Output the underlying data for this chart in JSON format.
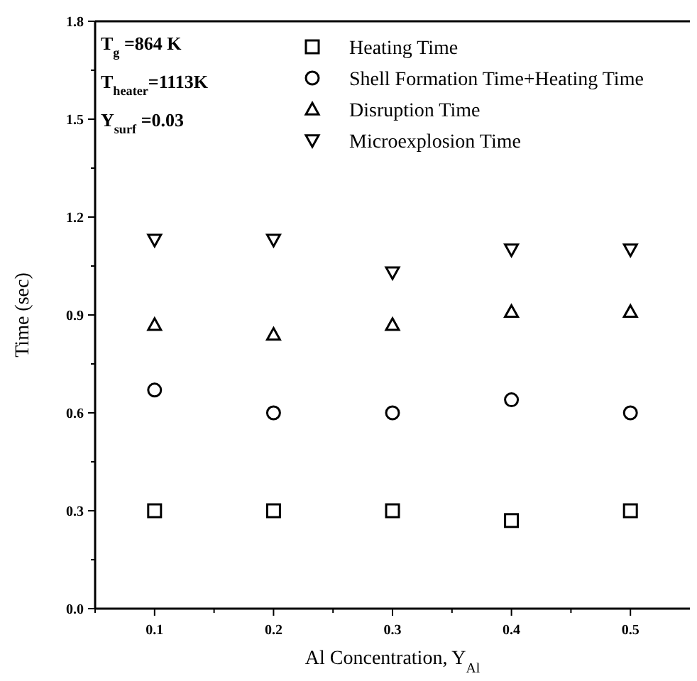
{
  "chart_data": {
    "type": "scatter",
    "xlabel": "Al   Concentration, Y$_{Al}$",
    "ylabel": "Time   (sec)",
    "x": [
      0.1,
      0.2,
      0.3,
      0.4,
      0.5
    ],
    "xlim": [
      0.05,
      0.55
    ],
    "xticks": [
      {
        "value": 0.05,
        "label": null
      },
      0.1,
      {
        "value": 0.15,
        "label": null
      },
      0.2,
      {
        "value": 0.25,
        "label": null
      },
      0.3,
      {
        "value": 0.35,
        "label": null
      },
      0.4,
      {
        "value": 0.45,
        "label": null
      },
      0.5
    ],
    "ylim": [
      0,
      1.8
    ],
    "yticks": [
      "0.0",
      {
        "value": 0.15,
        "label": null
      },
      0.3,
      {
        "value": 0.45,
        "label": null
      },
      0.6,
      {
        "value": 0.75,
        "label": null
      },
      0.9,
      {
        "value": 1.05,
        "label": null
      },
      1.2,
      {
        "value": 1.35,
        "label": null
      },
      1.5,
      {
        "value": 1.65,
        "label": null
      },
      1.8
    ],
    "series": [
      {
        "name": "Heating Time",
        "color": "#000000",
        "marker": "square",
        "values": [
          0.3,
          0.3,
          0.3,
          0.27,
          0.3
        ]
      },
      {
        "name": "Shell Formation Time+Heating Time",
        "color": "#000000",
        "marker": "circle",
        "values": [
          0.67,
          0.6,
          0.6,
          0.64,
          0.6
        ]
      },
      {
        "name": "Disruption Time",
        "color": "#000000",
        "marker": "triangle",
        "values": [
          0.87,
          0.84,
          0.87,
          0.91,
          0.91
        ]
      },
      {
        "name": "Microexplosion Time",
        "color": "#000000",
        "marker": "triangle-down",
        "values": [
          1.13,
          1.13,
          1.03,
          1.1,
          1.1
        ]
      }
    ],
    "legend": "top right",
    "annotations": [
      "T$_{g}$ =864 K",
      "T$_{heater}$=1113K",
      "Y$_{surf}$ =0.03"
    ]
  }
}
